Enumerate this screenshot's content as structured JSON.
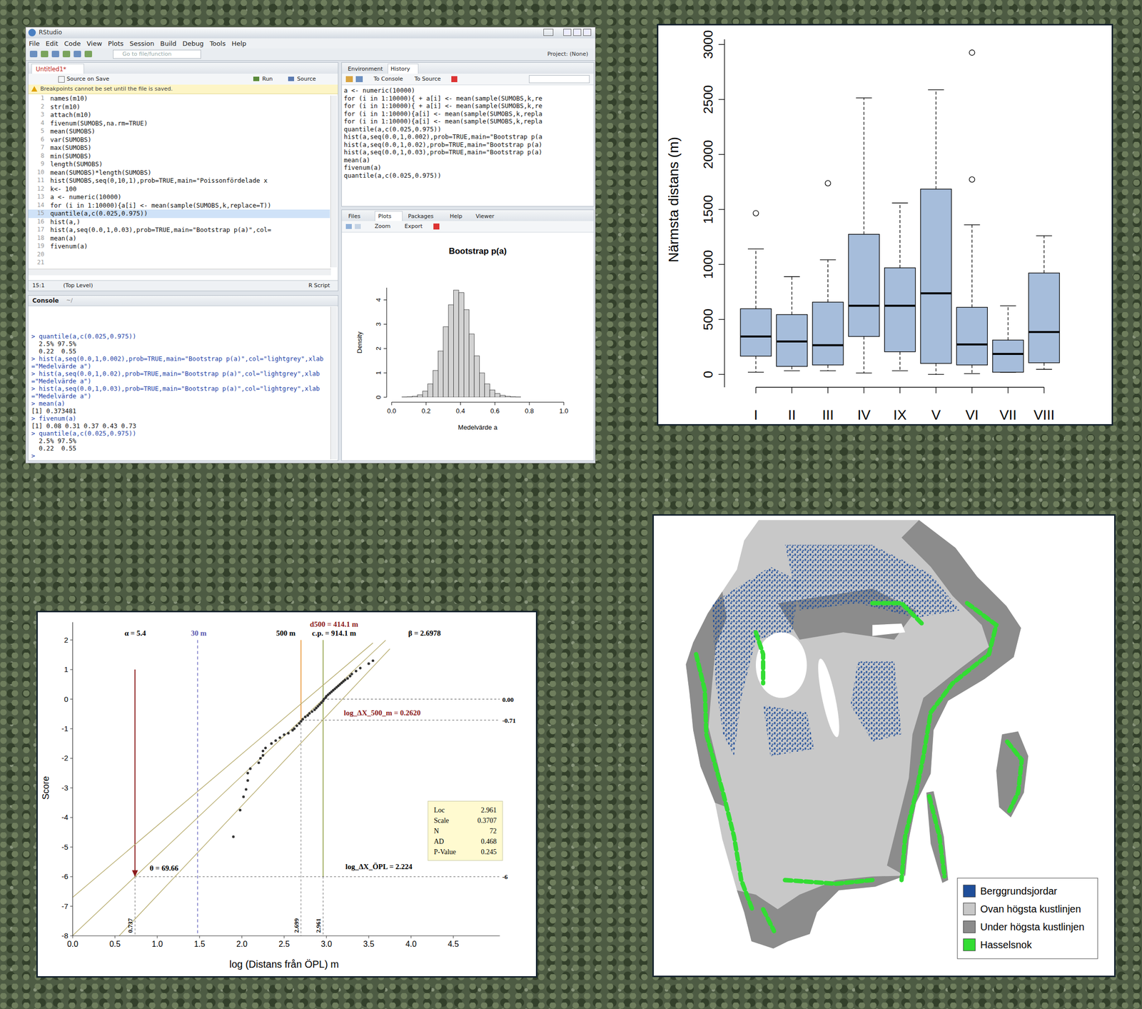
{
  "rstudio": {
    "window_title": "RStudio",
    "menu": [
      "File",
      "Edit",
      "Code",
      "View",
      "Plots",
      "Session",
      "Build",
      "Debug",
      "Tools",
      "Help"
    ],
    "goto": "Go to file/function",
    "project": "Project: (None)",
    "editor": {
      "tab": "Untitled1*",
      "source_on_save": "Source on Save",
      "run": "Run",
      "source": "Source",
      "warning": "Breakpoints cannot be set until the file is saved.",
      "line_numbers": [
        1,
        2,
        3,
        4,
        5,
        6,
        7,
        8,
        9,
        10,
        11,
        12,
        13,
        14,
        15,
        16,
        17,
        18,
        19,
        20,
        21
      ],
      "lines": [
        "names(m10)",
        "str(m10)",
        "attach(m10)",
        "fivenum(SUMOBS,na.rm=TRUE)",
        "mean(SUMOBS)",
        "var(SUMOBS)",
        "max(SUMOBS)",
        "min(SUMOBS)",
        "length(SUMOBS)",
        "mean(SUMOBS)*length(SUMOBS)",
        "hist(SUMOBS,seq(0,10,1),prob=TRUE,main=\"Poissonfördelade x",
        "k<- 100",
        "a <- numeric(10000)",
        "for (i in 1:10000){a[i] <- mean(sample(SUMOBS,k,replace=T))",
        "quantile(a,c(0.025,0.975))",
        "hist(a,)",
        "hist(a,seq(0.0,1,0.03),prob=TRUE,main=\"Bootstrap p(a)\",col=",
        "mean(a)",
        "fivenum(a)"
      ],
      "cursor": "15:1",
      "scope": "(Top Level)",
      "file_type": "R Script"
    },
    "history": {
      "tabs": [
        "Environment",
        "History"
      ],
      "to_console": "To Console",
      "to_source": "To Source",
      "lines": [
        "a <- numeric(10000)",
        "for (i in 1:10000){ + a[i] <- mean(sample(SUMOBS,k,re",
        "for (i in 1:10000){ + a[i] <- mean(sample(SUMOBS,k,re",
        "for (i in 1:10000){a[i] <- mean(sample(SUMOBS,k,repla",
        "for (i in 1:10000){a[i] <- mean(sample(SUMOBS,k,repla",
        "quantile(a,c(0.025,0.975))",
        "hist(a,seq(0.0,1,0.002),prob=TRUE,main=\"Bootstrap p(a",
        "hist(a,seq(0.0,1,0.02),prob=TRUE,main=\"Bootstrap p(a)",
        "hist(a,seq(0.0,1,0.03),prob=TRUE,main=\"Bootstrap p(a)",
        "mean(a)",
        "fivenum(a)",
        "quantile(a,c(0.025,0.975))"
      ]
    },
    "console": {
      "title": "Console",
      "path": "~/",
      "lines": [
        "> quantile(a,c(0.025,0.975))",
        "  2.5% 97.5%",
        "  0.22  0.55",
        "> hist(a,seq(0.0,1,0.002),prob=TRUE,main=\"Bootstrap p(a)\",col=\"lightgrey\",xlab=\"Medelvärde a\")",
        "> hist(a,seq(0.0,1,0.02),prob=TRUE,main=\"Bootstrap p(a)\",col=\"lightgrey\",xlab=\"Medelvärde a\")",
        "> hist(a,seq(0.0,1,0.03),prob=TRUE,main=\"Bootstrap p(a)\",col=\"lightgrey\",xlab=\"Medelvärde a\")",
        "> mean(a)",
        "[1] 0.373481",
        "> fivenum(a)",
        "[1] 0.08 0.31 0.37 0.43 0.73",
        "> quantile(a,c(0.025,0.975))",
        "  2.5% 97.5%",
        "  0.22  0.55",
        ">"
      ]
    },
    "viewer": {
      "tabs": [
        "Files",
        "Plots",
        "Packages",
        "Help",
        "Viewer"
      ],
      "zoom": "Zoom",
      "export": "Export"
    }
  },
  "chart_data": [
    {
      "type": "histogram",
      "title": "Bootstrap p(a)",
      "x_label": "Medelvärde a",
      "y_label": "Density",
      "color": "#d3d3d3",
      "bins": [
        0,
        0.03,
        0.06,
        0.09,
        0.12,
        0.15,
        0.18,
        0.21,
        0.24,
        0.27,
        0.3,
        0.33,
        0.36,
        0.39,
        0.42,
        0.45,
        0.48,
        0.51,
        0.54,
        0.57,
        0.6,
        0.63,
        0.66,
        0.69,
        0.72,
        0.75,
        0.78,
        0.81,
        0.84,
        0.87,
        0.9,
        0.93,
        0.96,
        0.99
      ],
      "values": [
        0,
        0,
        0.01,
        0.02,
        0.04,
        0.1,
        0.25,
        0.55,
        1.1,
        1.9,
        2.9,
        3.8,
        4.4,
        4.3,
        3.6,
        2.6,
        1.7,
        1.0,
        0.55,
        0.3,
        0.15,
        0.08,
        0.04,
        0.02,
        0.01,
        0,
        0,
        0,
        0,
        0,
        0,
        0,
        0
      ],
      "xlim": [
        0,
        1
      ],
      "ylim": [
        0,
        4.5
      ],
      "xticks": [
        {
          "value": 0,
          "label": "0.0"
        },
        {
          "value": 0.2,
          "label": "0.2"
        },
        {
          "value": 0.4,
          "label": "0.4"
        },
        {
          "value": 0.6,
          "label": "0.6"
        },
        {
          "value": 0.8,
          "label": "0.8"
        },
        {
          "value": 1,
          "label": "1.0"
        }
      ],
      "yticks": [
        0,
        1,
        2,
        3,
        4
      ]
    },
    {
      "type": "box",
      "y_label": "Närmsta distans (m)",
      "color": "#a6bddb",
      "categories": [
        "I",
        "II",
        "III",
        "IV",
        "IX",
        "V",
        "VI",
        "VII",
        "VIII"
      ],
      "boxes": [
        {
          "min": 20,
          "q1": 166,
          "median": 345,
          "q3": 597,
          "max": 1141,
          "outliers": [
            1466
          ]
        },
        {
          "min": 33,
          "q1": 73,
          "median": 299,
          "q3": 544,
          "max": 889,
          "outliers": []
        },
        {
          "min": 33,
          "q1": 86,
          "median": 265,
          "q3": 657,
          "max": 1042,
          "outliers": [
            1738
          ]
        },
        {
          "min": 13,
          "q1": 345,
          "median": 624,
          "q3": 1274,
          "max": 2515,
          "outliers": []
        },
        {
          "min": 33,
          "q1": 206,
          "median": 624,
          "q3": 969,
          "max": 1559,
          "outliers": []
        },
        {
          "min": 0,
          "q1": 100,
          "median": 737,
          "q3": 1685,
          "max": 2588,
          "outliers": []
        },
        {
          "min": 7,
          "q1": 86,
          "median": 272,
          "q3": 610,
          "max": 1360,
          "outliers": [
            2926,
            1772
          ]
        },
        {
          "min": 20,
          "q1": 20,
          "median": 186,
          "q3": 312,
          "max": 624,
          "outliers": []
        },
        {
          "min": 46,
          "q1": 106,
          "median": 385,
          "q3": 922,
          "max": 1261,
          "outliers": []
        }
      ],
      "ylim": [
        -117,
        3047
      ],
      "yticks": [
        0,
        500,
        1000,
        1500,
        2000,
        2500,
        3000
      ]
    },
    {
      "type": "scatter",
      "x_label": "log (Distans från ÖPL) m",
      "y_label": "Score",
      "color": "#333333",
      "marker": "circle",
      "x": [
        1.9,
        1.98,
        2.02,
        2.05,
        2.07,
        2.07,
        2.1,
        2.2,
        2.22,
        2.25,
        2.25,
        2.28,
        2.35,
        2.4,
        2.45,
        2.5,
        2.55,
        2.6,
        2.62,
        2.65,
        2.68,
        2.7,
        2.72,
        2.75,
        2.78,
        2.8,
        2.83,
        2.86,
        2.88,
        2.9,
        2.92,
        2.94,
        2.96,
        2.97,
        2.99,
        3.0,
        3.02,
        3.04,
        3.06,
        3.08,
        3.1,
        3.12,
        3.14,
        3.16,
        3.18,
        3.2,
        3.22,
        3.25,
        3.28,
        3.3,
        3.35,
        3.4,
        3.5,
        3.55
      ],
      "values": [
        -4.65,
        -3.75,
        -3.3,
        -3.05,
        -2.75,
        -2.5,
        -2.35,
        -2.15,
        -2.0,
        -1.9,
        -1.75,
        -1.65,
        -1.5,
        -1.4,
        -1.3,
        -1.2,
        -1.15,
        -1.05,
        -1.0,
        -0.9,
        -0.82,
        -0.75,
        -0.68,
        -0.6,
        -0.55,
        -0.48,
        -0.42,
        -0.36,
        -0.3,
        -0.24,
        -0.18,
        -0.12,
        -0.06,
        0,
        0.05,
        0.1,
        0.15,
        0.2,
        0.25,
        0.3,
        0.35,
        0.4,
        0.45,
        0.5,
        0.55,
        0.6,
        0.65,
        0.7,
        0.78,
        0.85,
        0.95,
        1.05,
        1.2,
        1.3
      ],
      "xlim": [
        0,
        5.05
      ],
      "ylim": [
        -8,
        2.6
      ],
      "xticks": [
        {
          "value": 0,
          "label": "0.0"
        },
        {
          "value": 0.5,
          "label": "0.5"
        },
        {
          "value": 1,
          "label": "1.0"
        },
        {
          "value": 1.5,
          "label": "1.5"
        },
        {
          "value": 2,
          "label": "2.0"
        },
        {
          "value": 2.5,
          "label": "2.5"
        },
        {
          "value": 3,
          "label": "3.0"
        },
        {
          "value": 3.5,
          "label": "3.5"
        },
        {
          "value": 4,
          "label": "4.0"
        },
        {
          "value": 4.5,
          "label": "4.5"
        }
      ],
      "yticks": [
        2,
        1,
        0,
        -1,
        -2,
        -3,
        -4,
        -5,
        -6,
        -7,
        -8
      ],
      "fit_lines": [
        {
          "x": [
            0,
            3.7
          ],
          "values": [
            -7.99,
            1.99
          ],
          "color": "#b8ad70"
        },
        {
          "x": [
            0,
            3.55
          ],
          "values": [
            -6.7,
            1.9
          ],
          "color": "#b8ad70"
        },
        {
          "x": [
            0.55,
            3.75
          ],
          "values": [
            -8,
            1.7
          ],
          "color": "#b8ad70"
        }
      ],
      "vlines": [
        {
          "value": 0.737,
          "label": "0.737",
          "color": "#8b1a1a",
          "line_style": "arrow",
          "y_from": 1,
          "solid_to": -6
        },
        {
          "value": 1.477,
          "color": "#7a7ac8",
          "line_style": "dashed",
          "y_from": 2,
          "solid_to": -8
        },
        {
          "value": 2.699,
          "label": "2.699",
          "color": "#e8902a",
          "line_style": "solid",
          "y_from": 2,
          "solid_to": -0.71
        },
        {
          "value": 2.961,
          "label": "2.961",
          "color": "#8a9a3a",
          "line_style": "solid",
          "y_from": 2,
          "solid_to": -6
        }
      ],
      "hlines": [
        {
          "value": 0,
          "label": "0.00",
          "from": 2.961
        },
        {
          "value": -0.71,
          "label": "-0.71",
          "from": 2.699
        },
        {
          "value": -6,
          "label": "-6",
          "from": 0.737
        }
      ],
      "annotations": [
        {
          "text": "α = 5.4",
          "x": 0.74,
          "y": 2.15,
          "color": "#000000"
        },
        {
          "text": "30 m",
          "x": 1.49,
          "y": 2.15,
          "color": "#5a5ab0"
        },
        {
          "text": "500 m",
          "x": 2.52,
          "y": 2.15,
          "color": "#000000"
        },
        {
          "text": "c.p. = 914.1 m",
          "x": 3.09,
          "y": 2.15,
          "color": "#000000"
        },
        {
          "text": "d500 = 414.1 m",
          "x": 3.09,
          "y": 2.45,
          "color": "#8b1a1a"
        },
        {
          "text": "β = 2.6978",
          "x": 4.16,
          "y": 2.15,
          "color": "#000000"
        },
        {
          "text": "log_ΔX_500_m = 0.2620",
          "x": 3.66,
          "y": -0.55,
          "color": "#8b1a1a"
        },
        {
          "text": "θ = 69.66",
          "x": 1.08,
          "y": -5.8,
          "color": "#000000"
        },
        {
          "text": "log_ΔX_ÖPL = 2.224",
          "x": 3.62,
          "y": -5.75,
          "color": "#000000"
        }
      ],
      "stats": [
        {
          "label": "Loc",
          "value": 2.961
        },
        {
          "label": "Scale",
          "value": 0.3707
        },
        {
          "label": "N",
          "value": 72
        },
        {
          "label": "AD",
          "value": 0.468
        },
        {
          "label": "P-Value",
          "value": 0.245
        }
      ]
    }
  ],
  "map": {
    "legend": [
      {
        "name": "Berggrundsjordar",
        "color": "#1f4e9a"
      },
      {
        "name": "Ovan högsta kustlinjen",
        "color": "#c8c8c8"
      },
      {
        "name": "Under högsta kustlinjen",
        "color": "#8c8c8c"
      },
      {
        "name": "Hasselsnok",
        "color": "#33dd33"
      }
    ]
  }
}
